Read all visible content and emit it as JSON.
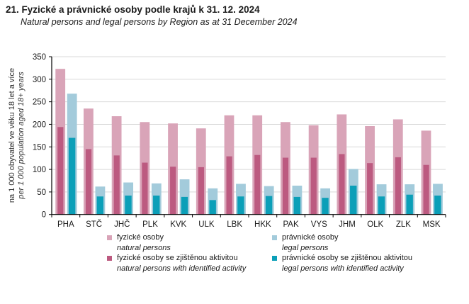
{
  "chart_data": {
    "type": "bar",
    "title": "21. Fyzické a právnické osoby podle krajů k 31. 12. 2024",
    "subtitle": "Natural persons and legal persons by Region as at 31 December 2024",
    "ylabel_cz": "na 1 000 obyvatel ve věku 18 let a více",
    "ylabel_en": "per 1 000 population aged 18+ years",
    "xlabel": "",
    "ylim": [
      0,
      350
    ],
    "yticks": [
      0,
      50,
      100,
      150,
      200,
      250,
      300,
      350
    ],
    "grid": true,
    "legend_position": "bottom",
    "categories": [
      "PHA",
      "STČ",
      "JHČ",
      "PLK",
      "KVK",
      "ULK",
      "LBK",
      "HKK",
      "PAK",
      "VYS",
      "JHM",
      "OLK",
      "ZLK",
      "MSK"
    ],
    "series": [
      {
        "key": "natural",
        "name": "fyzické osoby",
        "name_en": "natural persons",
        "color": "#d9a4b8",
        "values": [
          323,
          235,
          218,
          205,
          202,
          191,
          220,
          220,
          205,
          198,
          222,
          196,
          211,
          186
        ]
      },
      {
        "key": "legal",
        "name": "právnické osoby",
        "name_en": "legal persons",
        "color": "#a3cbdb",
        "values": [
          268,
          62,
          71,
          69,
          78,
          58,
          68,
          63,
          64,
          58,
          101,
          67,
          67,
          68
        ]
      },
      {
        "key": "natural_active",
        "name": "fyzické osoby se zjištěnou aktivitou",
        "name_en": "natural persons with identified activity",
        "color": "#bc5a80",
        "values": [
          194,
          145,
          131,
          115,
          106,
          105,
          129,
          132,
          126,
          126,
          134,
          114,
          127,
          110
        ]
      },
      {
        "key": "legal_active",
        "name": "právnické osoby se zjištěnou aktivitou",
        "name_en": "legal persons with identified activity",
        "color": "#0b9fb8",
        "values": [
          170,
          40,
          42,
          42,
          39,
          32,
          40,
          41,
          39,
          37,
          64,
          40,
          44,
          42
        ]
      }
    ]
  }
}
